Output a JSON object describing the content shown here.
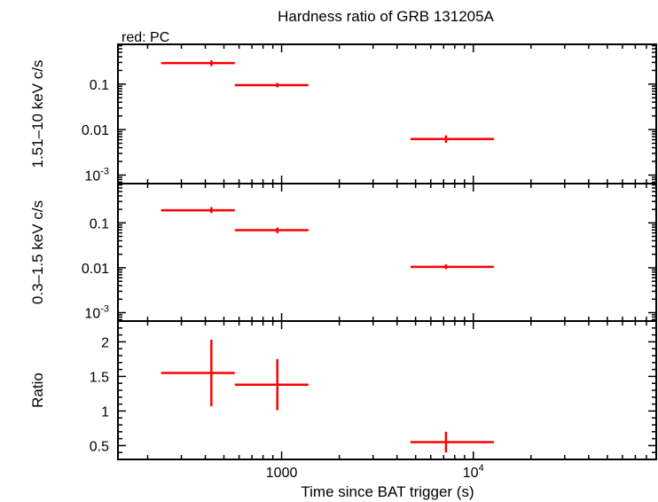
{
  "chart_data": {
    "title": "Hardness ratio of GRB 131205A",
    "subtitle": "red: PC",
    "xlabel": "Time since BAT trigger (s)",
    "x_scale": "log",
    "xlim": [
      140,
      90000
    ],
    "x_ticks": [
      {
        "value": 1000,
        "label": "1000"
      },
      {
        "value": 10000,
        "label": "10^4"
      }
    ],
    "series_color": "#ff0000",
    "panels": [
      {
        "id": "hard",
        "type": "scatter",
        "ylabel": "1.51–10 keV c/s",
        "y_scale": "log",
        "ylim": [
          0.00065,
          0.75
        ],
        "y_ticks": [
          {
            "value": 0.1,
            "label": "0.1"
          },
          {
            "value": 0.01,
            "label": "0.01"
          },
          {
            "value": 0.001,
            "label": "10^-3"
          }
        ],
        "points": [
          {
            "x": 430,
            "xlo": 235,
            "xhi": 570,
            "y": 0.29,
            "ylo": 0.25,
            "yhi": 0.335
          },
          {
            "x": 950,
            "xlo": 570,
            "xhi": 1380,
            "y": 0.095,
            "ylo": 0.085,
            "yhi": 0.106
          },
          {
            "x": 7200,
            "xlo": 4700,
            "xhi": 12800,
            "y": 0.0062,
            "ylo": 0.0051,
            "yhi": 0.0075
          }
        ]
      },
      {
        "id": "soft",
        "type": "scatter",
        "ylabel": "0.3–1.5 keV c/s",
        "y_scale": "log",
        "ylim": [
          0.00065,
          0.75
        ],
        "y_ticks": [
          {
            "value": 0.1,
            "label": "0.1"
          },
          {
            "value": 0.01,
            "label": "0.01"
          },
          {
            "value": 0.001,
            "label": "10^-3"
          }
        ],
        "points": [
          {
            "x": 430,
            "xlo": 235,
            "xhi": 570,
            "y": 0.19,
            "ylo": 0.165,
            "yhi": 0.225
          },
          {
            "x": 950,
            "xlo": 570,
            "xhi": 1380,
            "y": 0.069,
            "ylo": 0.059,
            "yhi": 0.079
          },
          {
            "x": 7200,
            "xlo": 4700,
            "xhi": 12800,
            "y": 0.0105,
            "ylo": 0.0093,
            "yhi": 0.0119
          }
        ]
      },
      {
        "id": "ratio",
        "type": "scatter",
        "ylabel": "Ratio",
        "y_scale": "linear",
        "ylim": [
          0.3,
          2.3
        ],
        "y_ticks": [
          {
            "value": 0.5,
            "label": "0.5"
          },
          {
            "value": 1,
            "label": "1"
          },
          {
            "value": 1.5,
            "label": "1.5"
          },
          {
            "value": 2,
            "label": "2"
          }
        ],
        "points": [
          {
            "x": 430,
            "xlo": 235,
            "xhi": 570,
            "y": 1.55,
            "ylo": 1.07,
            "yhi": 2.03
          },
          {
            "x": 950,
            "xlo": 570,
            "xhi": 1380,
            "y": 1.38,
            "ylo": 1.01,
            "yhi": 1.75
          },
          {
            "x": 7200,
            "xlo": 4700,
            "xhi": 12800,
            "y": 0.55,
            "ylo": 0.4,
            "yhi": 0.7
          }
        ]
      }
    ]
  }
}
